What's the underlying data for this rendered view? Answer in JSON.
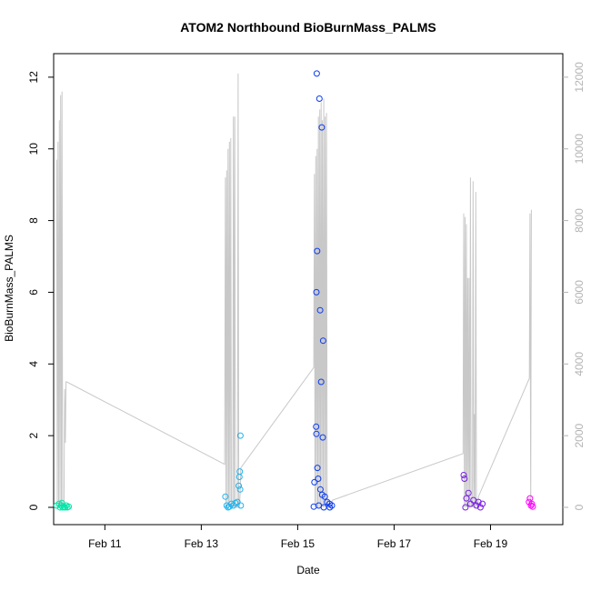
{
  "chart_data": {
    "type": "scatter",
    "title": "ATOM2 Northbound BioBurnMass_PALMS",
    "xlabel": "Date",
    "ylabel": "BioBurnMass_PALMS",
    "x_axis_kind": "date",
    "xlim": [
      "2018-02-09T22:30",
      "2018-02-20T12:00"
    ],
    "ylim": [
      0,
      12.5
    ],
    "y_ticks": [
      0,
      2,
      4,
      6,
      8,
      10,
      12
    ],
    "x_ticks": [
      {
        "date": "2018-02-11",
        "label": "Feb 11"
      },
      {
        "date": "2018-02-13",
        "label": "Feb 13"
      },
      {
        "date": "2018-02-15",
        "label": "Feb 15"
      },
      {
        "date": "2018-02-17",
        "label": "Feb 17"
      },
      {
        "date": "2018-02-19",
        "label": "Feb 19"
      }
    ],
    "y2_ticks": [
      0,
      2000,
      4000,
      6000,
      8000,
      10000,
      12000
    ],
    "y2_lim": [
      0,
      12500
    ],
    "grid": false,
    "colors": {
      "group1": "#00e6a8",
      "group2": "#1eb4f0",
      "group3": "#0a3cf0",
      "group4": "#7a1ee6",
      "group5": "#ff00ff",
      "line": "#c8c8c8",
      "right_axis": "#b3b3b3"
    },
    "points": [
      {
        "group": "group1",
        "x": "2018-02-10T00:00",
        "y": 0.05
      },
      {
        "group": "group1",
        "x": "2018-02-10T01:10",
        "y": 0.1
      },
      {
        "group": "group1",
        "x": "2018-02-10T01:40",
        "y": 0.0
      },
      {
        "group": "group1",
        "x": "2018-02-10T02:20",
        "y": 0.05
      },
      {
        "group": "group1",
        "x": "2018-02-10T03:00",
        "y": 0.0
      },
      {
        "group": "group1",
        "x": "2018-02-10T03:40",
        "y": 0.02
      },
      {
        "group": "group1",
        "x": "2018-02-10T04:10",
        "y": 0.0
      },
      {
        "group": "group1",
        "x": "2018-02-10T04:50",
        "y": 0.05
      },
      {
        "group": "group1",
        "x": "2018-02-10T05:20",
        "y": 0.0
      },
      {
        "group": "group1",
        "x": "2018-02-10T06:00",
        "y": 0.02
      },
      {
        "group": "group1",
        "x": "2018-02-10T02:40",
        "y": 0.12
      },
      {
        "group": "group2",
        "x": "2018-02-13T12:00",
        "y": 0.3
      },
      {
        "group": "group2",
        "x": "2018-02-13T12:40",
        "y": 0.05
      },
      {
        "group": "group2",
        "x": "2018-02-13T13:20",
        "y": 0.0
      },
      {
        "group": "group2",
        "x": "2018-02-13T14:00",
        "y": 0.02
      },
      {
        "group": "group2",
        "x": "2018-02-13T15:00",
        "y": 0.1
      },
      {
        "group": "group2",
        "x": "2018-02-13T16:00",
        "y": 0.05
      },
      {
        "group": "group2",
        "x": "2018-02-13T17:00",
        "y": 0.12
      },
      {
        "group": "group2",
        "x": "2018-02-13T18:00",
        "y": 0.15
      },
      {
        "group": "group2",
        "x": "2018-02-13T18:40",
        "y": 0.6
      },
      {
        "group": "group2",
        "x": "2018-02-13T19:00",
        "y": 0.85
      },
      {
        "group": "group2",
        "x": "2018-02-13T19:10",
        "y": 1.0
      },
      {
        "group": "group2",
        "x": "2018-02-13T19:20",
        "y": 0.5
      },
      {
        "group": "group2",
        "x": "2018-02-13T19:30",
        "y": 2.0
      },
      {
        "group": "group2",
        "x": "2018-02-13T19:40",
        "y": 0.05
      },
      {
        "group": "group3",
        "x": "2018-02-15T09:30",
        "y": 12.1
      },
      {
        "group": "group3",
        "x": "2018-02-15T10:50",
        "y": 11.4
      },
      {
        "group": "group3",
        "x": "2018-02-15T12:00",
        "y": 10.6
      },
      {
        "group": "group3",
        "x": "2018-02-15T09:40",
        "y": 7.15
      },
      {
        "group": "group3",
        "x": "2018-02-15T09:20",
        "y": 6.0
      },
      {
        "group": "group3",
        "x": "2018-02-15T11:10",
        "y": 5.5
      },
      {
        "group": "group3",
        "x": "2018-02-15T12:40",
        "y": 4.65
      },
      {
        "group": "group3",
        "x": "2018-02-15T11:40",
        "y": 3.5
      },
      {
        "group": "group3",
        "x": "2018-02-15T09:10",
        "y": 2.25
      },
      {
        "group": "group3",
        "x": "2018-02-15T09:20",
        "y": 2.05
      },
      {
        "group": "group3",
        "x": "2018-02-15T12:30",
        "y": 1.95
      },
      {
        "group": "group3",
        "x": "2018-02-15T09:50",
        "y": 1.1
      },
      {
        "group": "group3",
        "x": "2018-02-15T10:10",
        "y": 0.8
      },
      {
        "group": "group3",
        "x": "2018-02-15T08:20",
        "y": 0.7
      },
      {
        "group": "group3",
        "x": "2018-02-15T11:20",
        "y": 0.5
      },
      {
        "group": "group3",
        "x": "2018-02-15T12:10",
        "y": 0.35
      },
      {
        "group": "group3",
        "x": "2018-02-15T13:30",
        "y": 0.3
      },
      {
        "group": "group3",
        "x": "2018-02-15T14:40",
        "y": 0.15
      },
      {
        "group": "group3",
        "x": "2018-02-15T15:50",
        "y": 0.1
      },
      {
        "group": "group3",
        "x": "2018-02-15T17:00",
        "y": 0.05
      },
      {
        "group": "group3",
        "x": "2018-02-15T08:00",
        "y": 0.02
      },
      {
        "group": "group3",
        "x": "2018-02-15T10:30",
        "y": 0.05
      },
      {
        "group": "group3",
        "x": "2018-02-15T13:00",
        "y": 0.0
      },
      {
        "group": "group3",
        "x": "2018-02-15T16:00",
        "y": 0.0
      },
      {
        "group": "group4",
        "x": "2018-02-18T10:40",
        "y": 0.9
      },
      {
        "group": "group4",
        "x": "2018-02-18T11:00",
        "y": 0.8
      },
      {
        "group": "group4",
        "x": "2018-02-18T12:00",
        "y": 0.25
      },
      {
        "group": "group4",
        "x": "2018-02-18T13:00",
        "y": 0.4
      },
      {
        "group": "group4",
        "x": "2018-02-18T14:00",
        "y": 0.1
      },
      {
        "group": "group4",
        "x": "2018-02-18T15:30",
        "y": 0.2
      },
      {
        "group": "group4",
        "x": "2018-02-18T17:00",
        "y": 0.05
      },
      {
        "group": "group4",
        "x": "2018-02-18T18:00",
        "y": 0.15
      },
      {
        "group": "group4",
        "x": "2018-02-18T19:00",
        "y": 0.0
      },
      {
        "group": "group4",
        "x": "2018-02-18T20:00",
        "y": 0.1
      },
      {
        "group": "group4",
        "x": "2018-02-18T11:30",
        "y": 0.0
      },
      {
        "group": "group5",
        "x": "2018-02-19T19:10",
        "y": 0.15
      },
      {
        "group": "group5",
        "x": "2018-02-19T19:40",
        "y": 0.25
      },
      {
        "group": "group5",
        "x": "2018-02-19T20:10",
        "y": 0.05
      },
      {
        "group": "group5",
        "x": "2018-02-19T20:30",
        "y": 0.1
      },
      {
        "group": "group5",
        "x": "2018-02-19T21:00",
        "y": 0.02
      }
    ],
    "altitude_series": {
      "name": "",
      "axis": "right",
      "x": [
        "2018-02-10T00:00",
        "2018-02-10T00:20",
        "2018-02-10T00:40",
        "2018-02-10T01:00",
        "2018-02-10T01:20",
        "2018-02-10T01:40",
        "2018-02-10T02:00",
        "2018-02-10T02:20",
        "2018-02-10T02:40",
        "2018-02-10T03:00",
        "2018-02-10T03:20",
        "2018-02-10T03:40",
        "2018-02-10T04:00",
        "2018-02-10T04:20",
        "2018-02-10T04:40",
        "2018-02-10T05:00",
        "2018-02-13T11:40",
        "2018-02-13T12:00",
        "2018-02-13T12:20",
        "2018-02-13T12:40",
        "2018-02-13T13:00",
        "2018-02-13T13:20",
        "2018-02-13T13:40",
        "2018-02-13T14:00",
        "2018-02-13T14:20",
        "2018-02-13T14:40",
        "2018-02-13T15:00",
        "2018-02-13T15:20",
        "2018-02-13T15:40",
        "2018-02-13T16:00",
        "2018-02-13T16:20",
        "2018-02-13T16:40",
        "2018-02-13T17:00",
        "2018-02-13T17:20",
        "2018-02-13T17:40",
        "2018-02-13T18:00",
        "2018-02-13T18:20",
        "2018-02-13T18:40",
        "2018-02-13T19:00",
        "2018-02-13T19:20",
        "2018-02-13T19:40",
        "2018-02-15T08:00",
        "2018-02-15T08:20",
        "2018-02-15T08:40",
        "2018-02-15T09:00",
        "2018-02-15T09:20",
        "2018-02-15T09:40",
        "2018-02-15T10:00",
        "2018-02-15T10:20",
        "2018-02-15T10:40",
        "2018-02-15T11:00",
        "2018-02-15T11:20",
        "2018-02-15T11:40",
        "2018-02-15T12:00",
        "2018-02-15T12:20",
        "2018-02-15T12:40",
        "2018-02-15T13:00",
        "2018-02-15T13:20",
        "2018-02-15T13:40",
        "2018-02-15T14:00",
        "2018-02-15T14:20",
        "2018-02-15T14:40",
        "2018-02-15T15:00",
        "2018-02-15T15:20",
        "2018-02-15T15:40",
        "2018-02-15T16:00",
        "2018-02-15T16:20",
        "2018-02-15T16:40",
        "2018-02-15T17:00",
        "2018-02-15T17:20",
        "2018-02-18T10:20",
        "2018-02-18T10:40",
        "2018-02-18T11:00",
        "2018-02-18T11:20",
        "2018-02-18T11:40",
        "2018-02-18T12:00",
        "2018-02-18T12:20",
        "2018-02-18T12:40",
        "2018-02-18T13:00",
        "2018-02-18T13:20",
        "2018-02-18T13:40",
        "2018-02-18T14:00",
        "2018-02-18T14:20",
        "2018-02-18T14:40",
        "2018-02-18T15:00",
        "2018-02-18T15:20",
        "2018-02-18T15:40",
        "2018-02-18T16:00",
        "2018-02-18T16:20",
        "2018-02-18T16:40",
        "2018-02-18T17:00",
        "2018-02-18T17:20",
        "2018-02-18T17:40",
        "2018-02-18T18:00",
        "2018-02-19T19:20",
        "2018-02-19T19:40",
        "2018-02-19T20:00",
        "2018-02-19T20:20"
      ],
      "y": [
        9700,
        0,
        10200,
        0,
        10800,
        0,
        11500,
        0,
        11600,
        0,
        0,
        200,
        3300,
        1800,
        3500,
        3500,
        1200,
        9200,
        0,
        9400,
        0,
        10000,
        0,
        10200,
        0,
        10300,
        0,
        0,
        0,
        10900,
        0,
        10900,
        0,
        100,
        0,
        0,
        12100,
        0,
        0,
        400,
        1100,
        3900,
        9300,
        0,
        9800,
        0,
        10000,
        0,
        10900,
        0,
        11100,
        0,
        11300,
        0,
        10800,
        0,
        11400,
        0,
        10900,
        0,
        11000,
        0,
        200,
        0,
        0,
        0,
        0,
        0,
        0,
        200,
        1500,
        8200,
        0,
        8100,
        0,
        7900,
        0,
        6400,
        0,
        6400,
        0,
        9200,
        0,
        200,
        0,
        9100,
        0,
        2600,
        0,
        8800,
        0,
        200,
        0,
        300,
        3600,
        8200,
        0,
        8300
      ]
    }
  }
}
